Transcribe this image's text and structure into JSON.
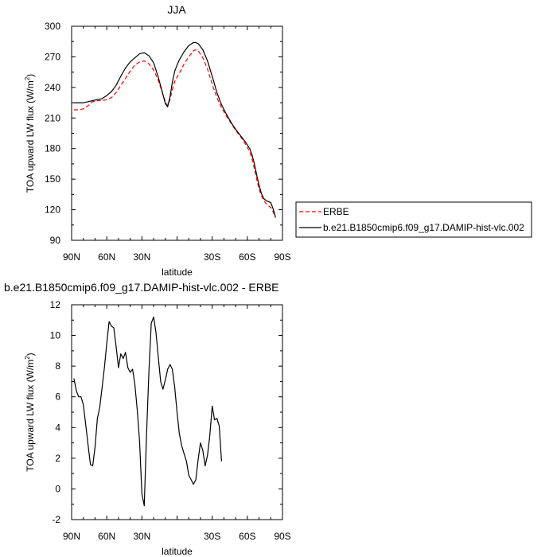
{
  "chart_data": [
    {
      "type": "line",
      "title": "JJA",
      "xlabel": "latitude",
      "ylabel": "TOA upward LW flux (W/m",
      "ylabel_sup": "2",
      "ylabel_end": ")",
      "xlim": [
        -90,
        90
      ],
      "ylim": [
        90,
        300
      ],
      "x_ticks": [
        {
          "value": -90,
          "label": "90N"
        },
        {
          "value": -60,
          "label": "60N"
        },
        {
          "value": -30,
          "label": "30N"
        },
        {
          "value": 0,
          "label": ""
        },
        {
          "value": 30,
          "label": "30S"
        },
        {
          "value": 60,
          "label": "60S"
        },
        {
          "value": 90,
          "label": "90S"
        }
      ],
      "y_ticks": [
        90,
        120,
        150,
        180,
        210,
        240,
        270,
        300
      ],
      "legend": {
        "placement": "right",
        "entries": [
          {
            "label": "ERBE",
            "color": "#ff0000",
            "dashed": true
          },
          {
            "label": "b.e21.B1850cmip6.f09_g17.DAMIP-hist-vlc.002",
            "color": "#000000",
            "dashed": false
          }
        ]
      },
      "series": [
        {
          "name": "ERBE",
          "color": "#ff0000",
          "dashed": true,
          "points": [
            [
              -88,
              218
            ],
            [
              -84,
              218
            ],
            [
              -80,
              219
            ],
            [
              -76,
              222
            ],
            [
              -72,
              226
            ],
            [
              -68,
              227
            ],
            [
              -64,
              227
            ],
            [
              -60,
              228
            ],
            [
              -56,
              230
            ],
            [
              -52,
              235
            ],
            [
              -48,
              242
            ],
            [
              -44,
              249
            ],
            [
              -40,
              256
            ],
            [
              -36,
              262
            ],
            [
              -32,
              265
            ],
            [
              -28,
              266
            ],
            [
              -24,
              263
            ],
            [
              -20,
              257
            ],
            [
              -16,
              247
            ],
            [
              -12,
              233
            ],
            [
              -10,
              226
            ],
            [
              -8,
              222
            ],
            [
              -6,
              228
            ],
            [
              -4,
              238
            ],
            [
              -2,
              246
            ],
            [
              0,
              250
            ],
            [
              2,
              254
            ],
            [
              6,
              263
            ],
            [
              10,
              270
            ],
            [
              14,
              276
            ],
            [
              16,
              277
            ],
            [
              18,
              276
            ],
            [
              22,
              269
            ],
            [
              26,
              258
            ],
            [
              30,
              243
            ],
            [
              34,
              230
            ],
            [
              38,
              220
            ],
            [
              42,
              212
            ],
            [
              46,
              205
            ],
            [
              50,
              198
            ],
            [
              54,
              192
            ],
            [
              58,
              185
            ],
            [
              62,
              177
            ],
            [
              64,
              170
            ],
            [
              66,
              160
            ],
            [
              68,
              150
            ],
            [
              70,
              140
            ],
            [
              72,
              134
            ],
            [
              74,
              129
            ],
            [
              76,
              126
            ],
            [
              78,
              124
            ],
            [
              80,
              122
            ],
            [
              82,
              118
            ],
            [
              84,
              112
            ]
          ]
        },
        {
          "name": "b.e21.B1850cmip6.f09_g17.DAMIP-hist-vlc.002",
          "color": "#000000",
          "dashed": false,
          "points": [
            [
              -88,
              225
            ],
            [
              -84,
              225
            ],
            [
              -80,
              225
            ],
            [
              -76,
              226
            ],
            [
              -72,
              227
            ],
            [
              -68,
              228
            ],
            [
              -64,
              229
            ],
            [
              -60,
              232
            ],
            [
              -56,
              236
            ],
            [
              -52,
              242
            ],
            [
              -48,
              251
            ],
            [
              -44,
              259
            ],
            [
              -40,
              265
            ],
            [
              -36,
              269
            ],
            [
              -32,
              273
            ],
            [
              -28,
              274
            ],
            [
              -24,
              271
            ],
            [
              -20,
              264
            ],
            [
              -16,
              250
            ],
            [
              -12,
              233
            ],
            [
              -10,
              224
            ],
            [
              -8,
              221
            ],
            [
              -6,
              231
            ],
            [
              -4,
              245
            ],
            [
              -2,
              256
            ],
            [
              0,
              262
            ],
            [
              2,
              267
            ],
            [
              6,
              275
            ],
            [
              10,
              281
            ],
            [
              14,
              284
            ],
            [
              16,
              284
            ],
            [
              18,
              283
            ],
            [
              22,
              277
            ],
            [
              26,
              266
            ],
            [
              30,
              251
            ],
            [
              34,
              235
            ],
            [
              38,
              223
            ],
            [
              42,
              214
            ],
            [
              46,
              206
            ],
            [
              50,
              199
            ],
            [
              54,
              193
            ],
            [
              58,
              187
            ],
            [
              62,
              180
            ],
            [
              64,
              174
            ],
            [
              66,
              165
            ],
            [
              68,
              154
            ],
            [
              70,
              144
            ],
            [
              72,
              136
            ],
            [
              74,
              131
            ],
            [
              76,
              129
            ],
            [
              78,
              128
            ],
            [
              80,
              127
            ],
            [
              82,
              121
            ],
            [
              84,
              113
            ]
          ]
        }
      ]
    },
    {
      "type": "line",
      "title": "b.e21.B1850cmip6.f09_g17.DAMIP-hist-vlc.002 - ERBE",
      "xlabel": "latitude",
      "ylabel": "TOA upward LW flux (W/m",
      "ylabel_sup": "2",
      "ylabel_end": ")",
      "xlim": [
        -90,
        90
      ],
      "ylim": [
        -2,
        12
      ],
      "x_ticks": [
        {
          "value": -90,
          "label": "90N"
        },
        {
          "value": -60,
          "label": "60N"
        },
        {
          "value": -30,
          "label": "30N"
        },
        {
          "value": 0,
          "label": ""
        },
        {
          "value": 30,
          "label": "30S"
        },
        {
          "value": 60,
          "label": "60S"
        },
        {
          "value": 90,
          "label": "90S"
        }
      ],
      "y_ticks": [
        -2,
        0,
        2,
        4,
        6,
        8,
        10,
        12
      ],
      "series": [
        {
          "color": "#000000",
          "dashed": false,
          "points": [
            [
              -88,
              7.2
            ],
            [
              -86,
              6.4
            ],
            [
              -84,
              6.0
            ],
            [
              -82,
              6.0
            ],
            [
              -80,
              5.5
            ],
            [
              -78,
              4.2
            ],
            [
              -76,
              2.9
            ],
            [
              -74,
              1.6
            ],
            [
              -72,
              1.5
            ],
            [
              -70,
              2.7
            ],
            [
              -68,
              4.6
            ],
            [
              -66,
              5.3
            ],
            [
              -64,
              6.6
            ],
            [
              -62,
              7.9
            ],
            [
              -60,
              9.5
            ],
            [
              -58,
              10.9
            ],
            [
              -56,
              10.6
            ],
            [
              -54,
              10.5
            ],
            [
              -52,
              9.3
            ],
            [
              -50,
              7.9
            ],
            [
              -48,
              8.8
            ],
            [
              -46,
              8.5
            ],
            [
              -44,
              8.9
            ],
            [
              -42,
              7.9
            ],
            [
              -40,
              7.6
            ],
            [
              -38,
              7.8
            ],
            [
              -36,
              6.8
            ],
            [
              -34,
              5.2
            ],
            [
              -32,
              3.1
            ],
            [
              -30,
              -0.3
            ],
            [
              -28,
              -1.1
            ],
            [
              -26,
              3.6
            ],
            [
              -24,
              7.7
            ],
            [
              -22,
              10.8
            ],
            [
              -20,
              11.2
            ],
            [
              -18,
              10.2
            ],
            [
              -16,
              8.6
            ],
            [
              -14,
              7.0
            ],
            [
              -12,
              6.5
            ],
            [
              -10,
              7.1
            ],
            [
              -8,
              7.8
            ],
            [
              -6,
              8.1
            ],
            [
              -4,
              7.8
            ],
            [
              -2,
              6.6
            ],
            [
              0,
              5.0
            ],
            [
              2,
              3.6
            ],
            [
              4,
              2.8
            ],
            [
              6,
              2.3
            ],
            [
              8,
              1.8
            ],
            [
              10,
              0.9
            ],
            [
              12,
              0.6
            ],
            [
              14,
              0.3
            ],
            [
              16,
              0.6
            ],
            [
              18,
              1.9
            ],
            [
              20,
              3.0
            ],
            [
              22,
              2.5
            ],
            [
              24,
              1.5
            ],
            [
              26,
              2.2
            ],
            [
              28,
              3.5
            ],
            [
              30,
              5.4
            ],
            [
              32,
              4.5
            ],
            [
              34,
              4.6
            ],
            [
              36,
              4.1
            ],
            [
              38,
              1.8
            ]
          ]
        }
      ]
    }
  ]
}
